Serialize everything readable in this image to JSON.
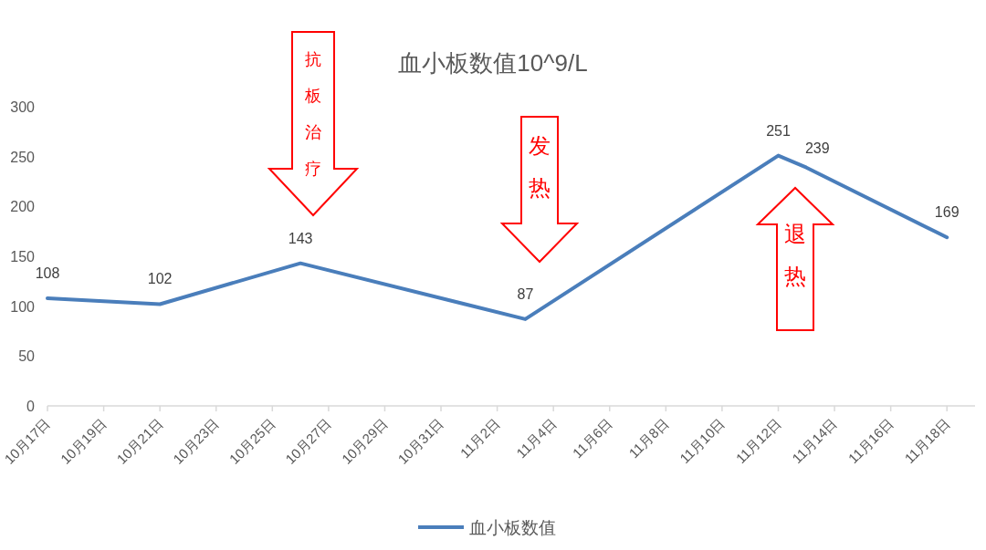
{
  "chart_data": {
    "type": "line",
    "title": "血小板数值10^9/L",
    "x": [
      "--10-17",
      "--10-21",
      "--10-26",
      "--11-03",
      "--11-12",
      "--11-13",
      "--11-18"
    ],
    "series": [
      {
        "name": "血小板数值",
        "color": "#4a7ebb",
        "values": [
          108,
          102,
          143,
          87,
          251,
          239,
          169
        ]
      }
    ],
    "xlim": [
      "--10-17",
      "--11-19"
    ],
    "xticks": [
      {
        "value": "--10-17",
        "label": "10月17日"
      },
      {
        "value": "--10-19",
        "label": "10月19日"
      },
      {
        "value": "--10-21",
        "label": "10月21日"
      },
      {
        "value": "--10-23",
        "label": "10月23日"
      },
      {
        "value": "--10-25",
        "label": "10月25日"
      },
      {
        "value": "--10-27",
        "label": "10月27日"
      },
      {
        "value": "--10-29",
        "label": "10月29日"
      },
      {
        "value": "--10-31",
        "label": "10月31日"
      },
      {
        "value": "--11-02",
        "label": "11月2日"
      },
      {
        "value": "--11-04",
        "label": "11月4日"
      },
      {
        "value": "--11-06",
        "label": "11月6日"
      },
      {
        "value": "--11-08",
        "label": "11月8日"
      },
      {
        "value": "--11-10",
        "label": "11月10日"
      },
      {
        "value": "--11-12",
        "label": "11月12日"
      },
      {
        "value": "--11-14",
        "label": "11月14日"
      },
      {
        "value": "--11-16",
        "label": "11月16日"
      },
      {
        "value": "--11-18",
        "label": "11月18日"
      }
    ],
    "ylim": [
      0,
      300
    ],
    "yticks": [
      0,
      50,
      100,
      150,
      200,
      250,
      300
    ],
    "grid": false,
    "legend": "bottom",
    "marker": "none",
    "line_style": "solid",
    "data_labels": true,
    "annotations": [
      "抗板治疗",
      "发热",
      "退热"
    ]
  }
}
